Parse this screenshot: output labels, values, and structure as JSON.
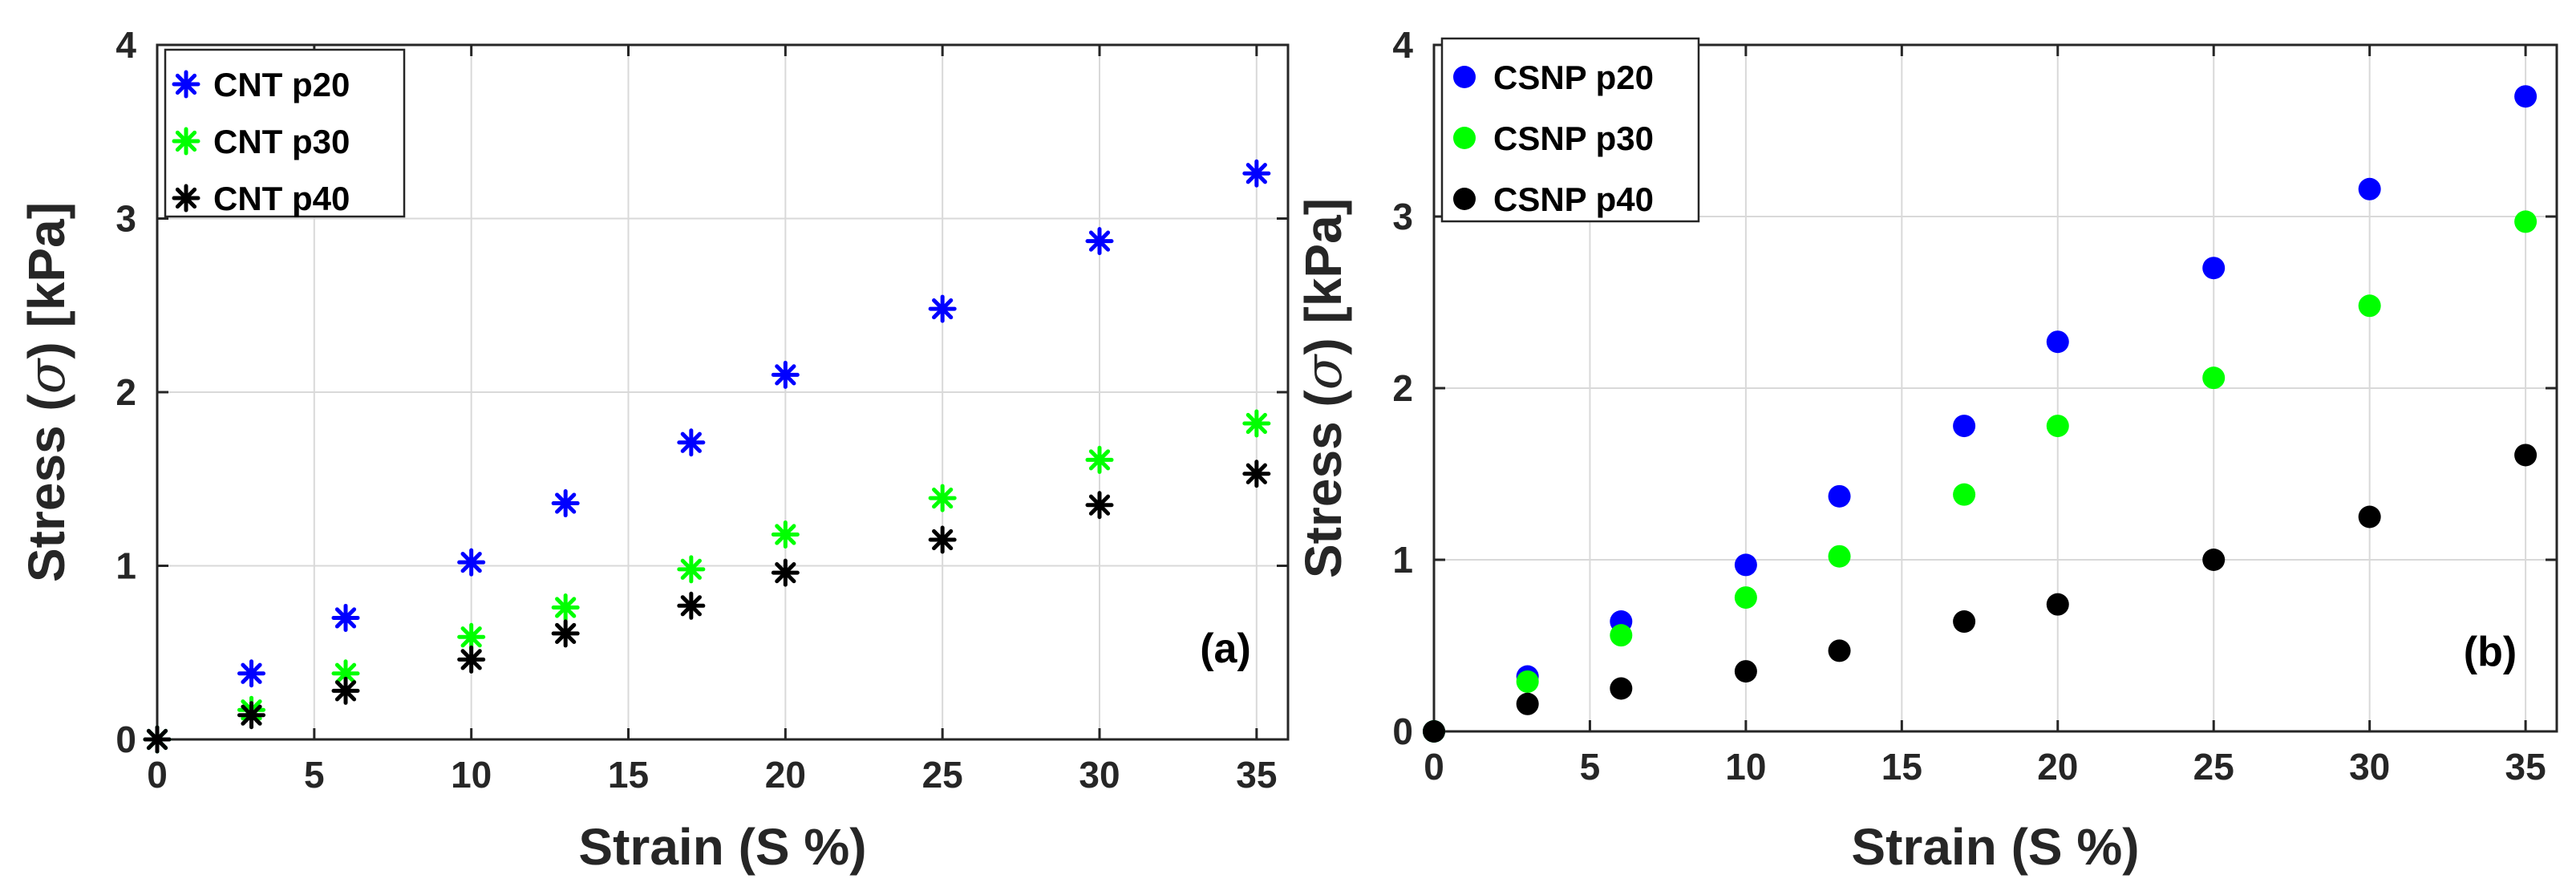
{
  "chart_data": [
    {
      "type": "scatter",
      "panel_label": "(a)",
      "xlabel": "Strain (S %)",
      "ylabel_prefix": "Stress (",
      "ylabel_symbol": "σ",
      "ylabel_suffix": ") [kPa]",
      "xlim": [
        0,
        36
      ],
      "ylim": [
        0,
        4
      ],
      "xticks": [
        0,
        5,
        10,
        15,
        20,
        25,
        30,
        35
      ],
      "yticks": [
        0,
        1,
        2,
        3,
        4
      ],
      "grid": true,
      "legend_position": "top-left",
      "marker": "asterisk",
      "x": [
        0,
        3,
        6,
        10,
        13,
        17,
        20,
        25,
        30,
        35
      ],
      "series": [
        {
          "name": "CNT p20",
          "color": "#0000ff",
          "values": [
            0,
            0.38,
            0.7,
            1.02,
            1.36,
            1.71,
            2.1,
            2.48,
            2.87,
            3.26
          ]
        },
        {
          "name": "CNT p30",
          "color": "#00ff00",
          "values": [
            0,
            0.17,
            0.38,
            0.59,
            0.76,
            0.98,
            1.18,
            1.39,
            1.61,
            1.82
          ]
        },
        {
          "name": "CNT p40",
          "color": "#000000",
          "values": [
            0,
            0.14,
            0.28,
            0.46,
            0.61,
            0.77,
            0.96,
            1.15,
            1.35,
            1.53
          ]
        }
      ]
    },
    {
      "type": "scatter",
      "panel_label": "(b)",
      "xlabel": "Strain (S %)",
      "ylabel_prefix": "Stress (",
      "ylabel_symbol": "σ",
      "ylabel_suffix": ") [kPa]",
      "xlim": [
        0,
        36
      ],
      "ylim": [
        0,
        4
      ],
      "xticks": [
        0,
        5,
        10,
        15,
        20,
        25,
        30,
        35
      ],
      "yticks": [
        0,
        1,
        2,
        3,
        4
      ],
      "grid": true,
      "legend_position": "top-left",
      "marker": "circle",
      "x": [
        0,
        3,
        6,
        10,
        13,
        17,
        20,
        25,
        30,
        35
      ],
      "series": [
        {
          "name": "CSNP p20",
          "color": "#0000ff",
          "values": [
            0,
            0.32,
            0.64,
            0.97,
            1.37,
            1.78,
            2.27,
            2.7,
            3.16,
            3.7
          ]
        },
        {
          "name": "CSNP p30",
          "color": "#00ff00",
          "values": [
            0,
            0.29,
            0.56,
            0.78,
            1.02,
            1.38,
            1.78,
            2.06,
            2.48,
            2.97
          ]
        },
        {
          "name": "CSNP p40",
          "color": "#000000",
          "values": [
            0,
            0.16,
            0.25,
            0.35,
            0.47,
            0.64,
            0.74,
            1.0,
            1.25,
            1.61
          ]
        }
      ]
    }
  ]
}
